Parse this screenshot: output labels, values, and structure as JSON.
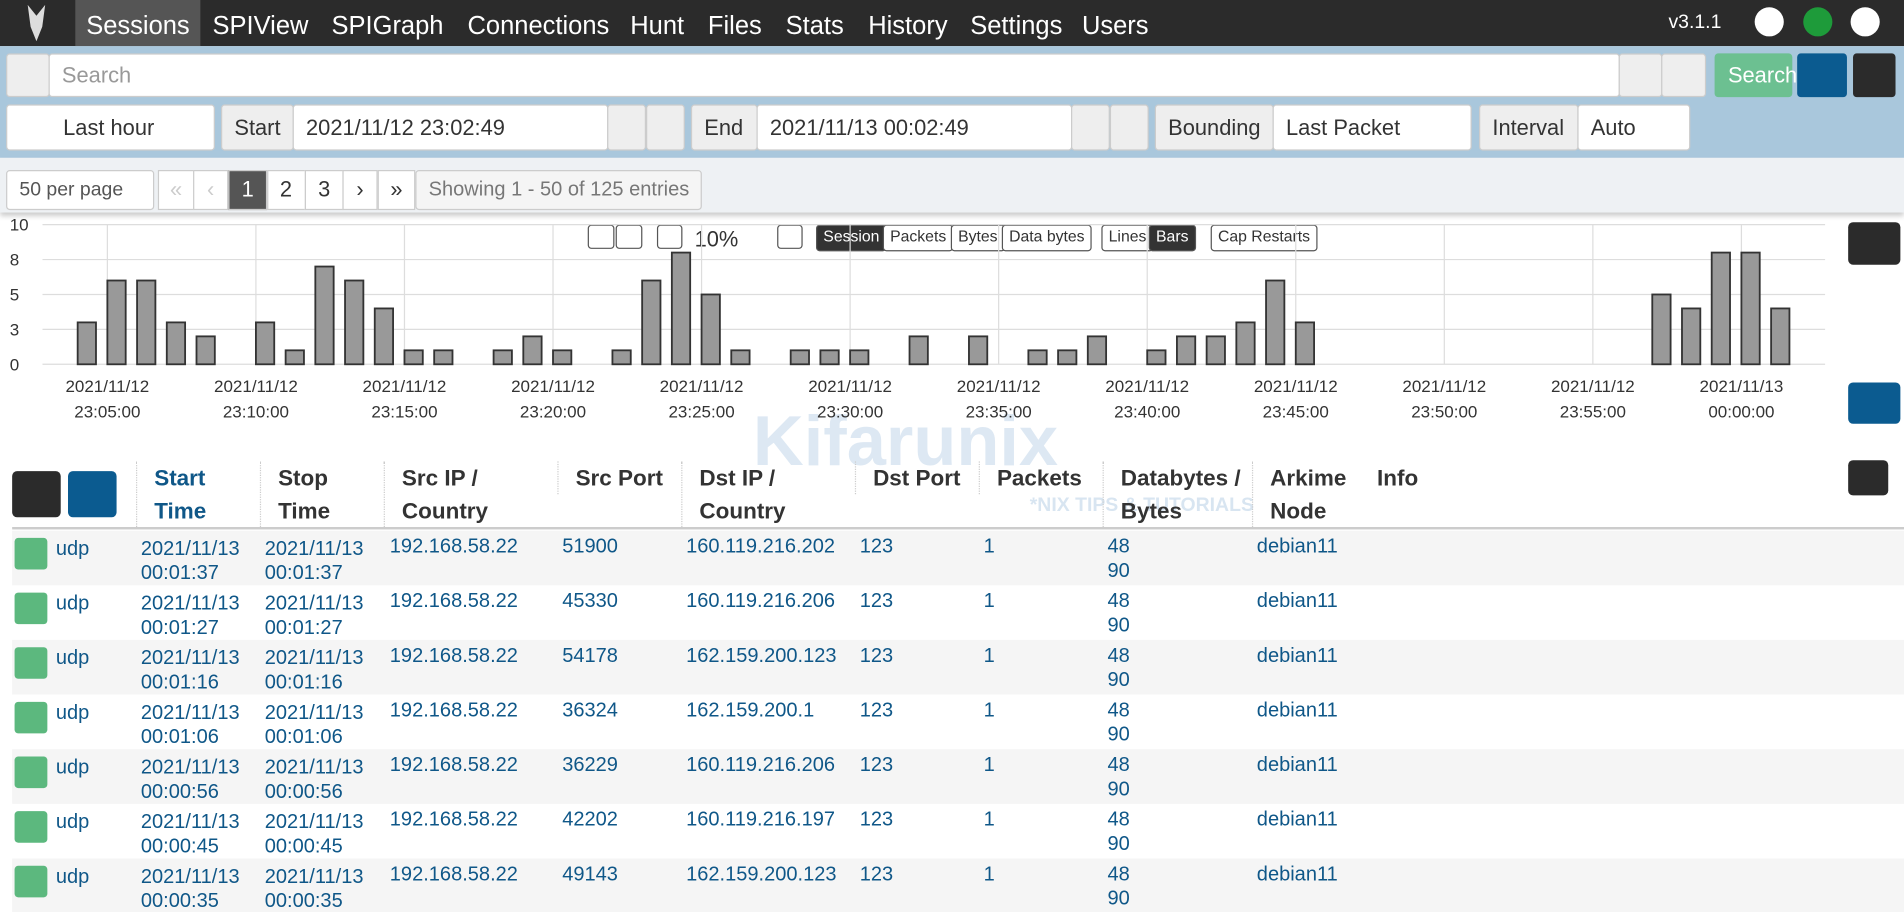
{
  "nav": {
    "items": [
      "Sessions",
      "SPIView",
      "SPIGraph",
      "Connections",
      "Hunt",
      "Files",
      "Stats",
      "History",
      "Settings",
      "Users"
    ],
    "version": "v3.1.1"
  },
  "search": {
    "placeholder": "Search",
    "button": "Search"
  },
  "time": {
    "range": "Last hour",
    "start_label": "Start",
    "start": "2021/11/12 23:02:49",
    "end_label": "End",
    "end": "2021/11/13 00:02:49",
    "bounding_label": "Bounding",
    "bounding": "Last Packet",
    "interval_label": "Interval",
    "interval": "Auto"
  },
  "pagination": {
    "per_page": "50 per page",
    "first": "«",
    "prev": "‹",
    "pages": [
      1,
      2,
      3
    ],
    "next": "›",
    "last": "»",
    "summary": "Showing 1 - 50 of 125 entries"
  },
  "chart_controls": {
    "zoom": "10%",
    "types": [
      "Session",
      "Packets",
      "Bytes",
      "Data bytes"
    ],
    "styles": [
      "Lines",
      "Bars"
    ],
    "cap_restarts": "Cap Restarts"
  },
  "chart_data": {
    "type": "bar",
    "color": "#999999",
    "grid": true,
    "x": [
      "2021/11/12 23:04:00",
      "2021/11/12 23:05:00",
      "2021/11/12 23:06:00",
      "2021/11/12 23:07:00",
      "2021/11/12 23:08:00",
      "2021/11/12 23:10:00",
      "2021/11/12 23:11:00",
      "2021/11/12 23:12:00",
      "2021/11/12 23:13:00",
      "2021/11/12 23:14:00",
      "2021/11/12 23:15:00",
      "2021/11/12 23:16:00",
      "2021/11/12 23:18:00",
      "2021/11/12 23:19:00",
      "2021/11/12 23:20:00",
      "2021/11/12 23:22:00",
      "2021/11/12 23:23:00",
      "2021/11/12 23:24:00",
      "2021/11/12 23:25:00",
      "2021/11/12 23:26:00",
      "2021/11/12 23:28:00",
      "2021/11/12 23:29:00",
      "2021/11/12 23:30:00",
      "2021/11/12 23:32:00",
      "2021/11/12 23:34:00",
      "2021/11/12 23:36:00",
      "2021/11/12 23:37:00",
      "2021/11/12 23:38:00",
      "2021/11/12 23:40:00",
      "2021/11/12 23:41:00",
      "2021/11/12 23:42:00",
      "2021/11/12 23:43:00",
      "2021/11/12 23:44:00",
      "2021/11/12 23:45:00",
      "2021/11/12 23:57:00",
      "2021/11/12 23:58:00",
      "2021/11/12 23:59:00",
      "2021/11/13 00:00:00",
      "2021/11/13 00:01:00"
    ],
    "values": [
      3,
      6,
      6,
      3,
      2,
      3,
      1,
      7,
      6,
      4,
      1,
      1,
      1,
      2,
      1,
      1,
      6,
      8,
      5,
      1,
      1,
      1,
      1,
      2,
      2,
      1,
      1,
      2,
      1,
      2,
      2,
      3,
      6,
      3,
      5,
      4,
      8,
      8,
      4
    ],
    "xlim": [
      "2021/11/12 23:02:49",
      "2021/11/13 00:02:49"
    ],
    "xticks": [
      [
        "2021/11/12",
        "23:05:00"
      ],
      [
        "2021/11/12",
        "23:10:00"
      ],
      [
        "2021/11/12",
        "23:15:00"
      ],
      [
        "2021/11/12",
        "23:20:00"
      ],
      [
        "2021/11/12",
        "23:25:00"
      ],
      [
        "2021/11/12",
        "23:30:00"
      ],
      [
        "2021/11/12",
        "23:35:00"
      ],
      [
        "2021/11/12",
        "23:40:00"
      ],
      [
        "2021/11/12",
        "23:45:00"
      ],
      [
        "2021/11/12",
        "23:50:00"
      ],
      [
        "2021/11/12",
        "23:55:00"
      ],
      [
        "2021/11/13",
        "00:00:00"
      ]
    ],
    "ylim": [
      0,
      10
    ],
    "yticks": [
      0,
      {
        "value": 2.5,
        "label": "3"
      },
      5,
      {
        "value": 7.5,
        "label": "8"
      },
      10
    ]
  },
  "table": {
    "columns": [
      "Start Time",
      "Stop Time",
      "Src IP / Country",
      "Src Port",
      "Dst IP / Country",
      "Dst Port",
      "Packets",
      "Databytes / Bytes",
      "Arkime Node",
      "Info"
    ],
    "rows": [
      [
        "udp",
        "2021/11/13",
        "00:01:37",
        "2021/11/13",
        "00:01:37",
        "192.168.58.22",
        51900,
        "160.119.216.202",
        123,
        1,
        48,
        90,
        "debian11"
      ],
      [
        "udp",
        "2021/11/13",
        "00:01:27",
        "2021/11/13",
        "00:01:27",
        "192.168.58.22",
        45330,
        "160.119.216.206",
        123,
        1,
        48,
        90,
        "debian11"
      ],
      [
        "udp",
        "2021/11/13",
        "00:01:16",
        "2021/11/13",
        "00:01:16",
        "192.168.58.22",
        54178,
        "162.159.200.123",
        123,
        1,
        48,
        90,
        "debian11"
      ],
      [
        "udp",
        "2021/11/13",
        "00:01:06",
        "2021/11/13",
        "00:01:06",
        "192.168.58.22",
        36324,
        "162.159.200.1",
        123,
        1,
        48,
        90,
        "debian11"
      ],
      [
        "udp",
        "2021/11/13",
        "00:00:56",
        "2021/11/13",
        "00:00:56",
        "192.168.58.22",
        36229,
        "160.119.216.206",
        123,
        1,
        48,
        90,
        "debian11"
      ],
      [
        "udp",
        "2021/11/13",
        "00:00:45",
        "2021/11/13",
        "00:00:45",
        "192.168.58.22",
        42202,
        "160.119.216.197",
        123,
        1,
        48,
        90,
        "debian11"
      ],
      [
        "udp",
        "2021/11/13",
        "00:00:35",
        "2021/11/13",
        "00:00:35",
        "192.168.58.22",
        49143,
        "162.159.200.123",
        123,
        1,
        48,
        90,
        "debian11"
      ]
    ]
  },
  "watermark": {
    "name": "Kifarunix",
    "tagline": "*NIX TIPS & TUTORIALS"
  }
}
